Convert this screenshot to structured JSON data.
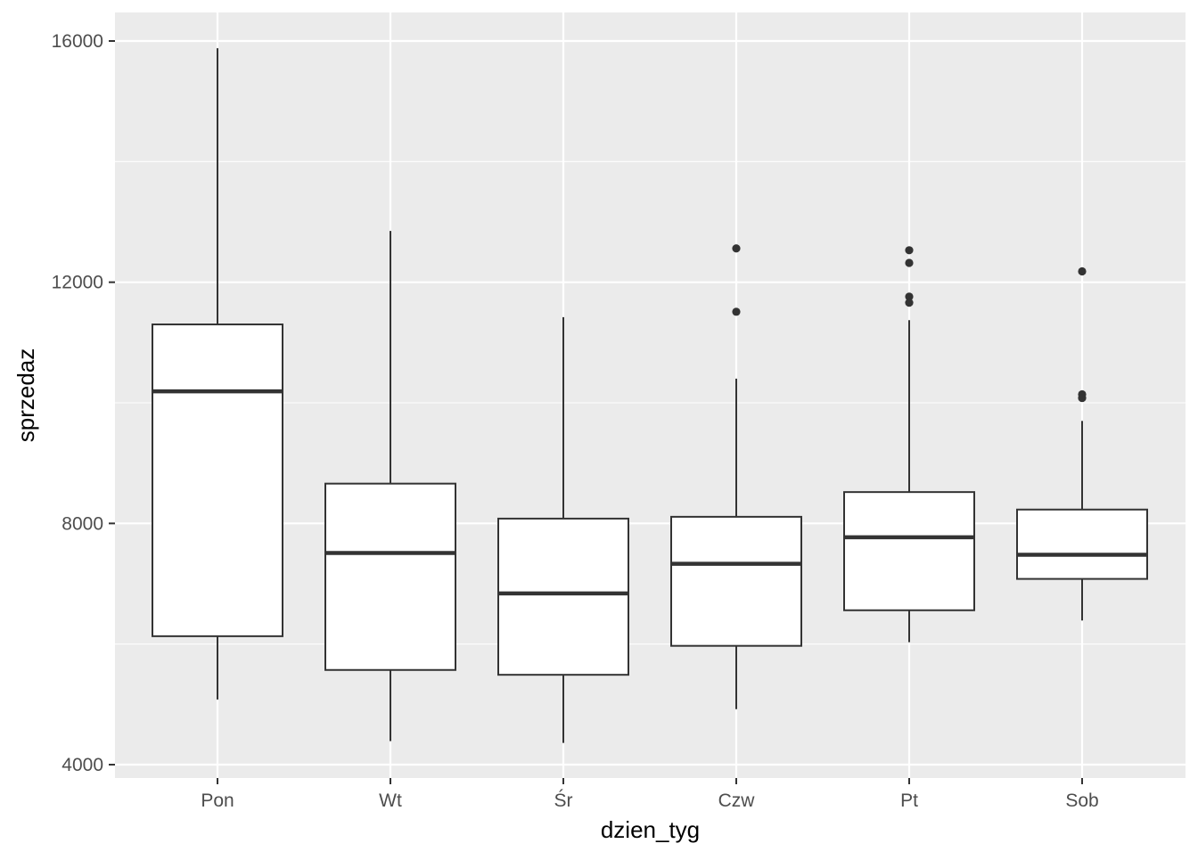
{
  "chart_data": {
    "type": "boxplot",
    "title": "",
    "xlabel": "dzien_tyg",
    "ylabel": "sprzedaz",
    "ylim": [
      3760,
      16480
    ],
    "yticks": [
      4000,
      8000,
      12000,
      16000
    ],
    "grid": true,
    "categories": [
      "Pon",
      "Wt",
      "Śr",
      "Czw",
      "Pt",
      "Sob"
    ],
    "boxes": [
      {
        "category": "Pon",
        "whisker_low": 5080,
        "q1": 6130,
        "median": 10190,
        "q3": 11300,
        "whisker_high": 15880,
        "outliers": []
      },
      {
        "category": "Wt",
        "whisker_low": 4390,
        "q1": 5570,
        "median": 7510,
        "q3": 8660,
        "whisker_high": 12850,
        "outliers": []
      },
      {
        "category": "Śr",
        "whisker_low": 4360,
        "q1": 5490,
        "median": 6840,
        "q3": 8080,
        "whisker_high": 11420,
        "outliers": []
      },
      {
        "category": "Czw",
        "whisker_low": 4920,
        "q1": 5970,
        "median": 7330,
        "q3": 8110,
        "whisker_high": 10400,
        "outliers": [
          12560,
          11510
        ]
      },
      {
        "category": "Pt",
        "whisker_low": 6030,
        "q1": 6560,
        "median": 7770,
        "q3": 8520,
        "whisker_high": 11370,
        "outliers": [
          12530,
          12320,
          11760,
          11660
        ]
      },
      {
        "category": "Sob",
        "whisker_low": 6390,
        "q1": 7080,
        "median": 7480,
        "q3": 8230,
        "whisker_high": 9700,
        "outliers": [
          12180,
          10140,
          10080
        ]
      }
    ],
    "colors": {
      "panel_background": "#ebebeb",
      "grid_line": "#ffffff",
      "box_fill": "#ffffff",
      "box_stroke": "#333333",
      "outlier": "#333333"
    }
  }
}
